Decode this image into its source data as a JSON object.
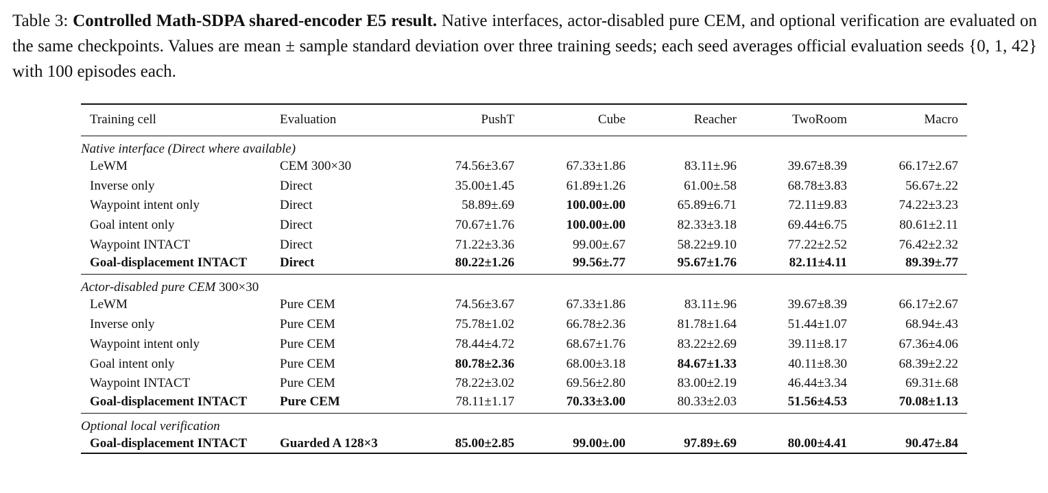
{
  "caption": {
    "label": "Table 3:",
    "title": "Controlled Math-SDPA shared-encoder E5 result.",
    "text": "Native interfaces, actor-disabled pure CEM, and optional verification are evaluated on the same checkpoints. Values are mean ± sample standard deviation over three training seeds; each seed averages official evaluation seeds {0, 1, 42} with 100 episodes each."
  },
  "table": {
    "headers": [
      "Training cell",
      "Evaluation",
      "PushT",
      "Cube",
      "Reacher",
      "TwoRoom",
      "Macro"
    ],
    "sections": [
      {
        "title": "Native interface (Direct where available)",
        "rows": [
          {
            "cells": [
              "LeWM",
              "CEM 300×30",
              "74.56±3.67",
              "67.33±1.86",
              "83.11±.96",
              "39.67±8.39",
              "66.17±2.67"
            ],
            "bold": [
              false,
              false,
              false,
              false,
              false,
              false,
              false
            ]
          },
          {
            "cells": [
              "Inverse only",
              "Direct",
              "35.00±1.45",
              "61.89±1.26",
              "61.00±.58",
              "68.78±3.83",
              "56.67±.22"
            ],
            "bold": [
              false,
              false,
              false,
              false,
              false,
              false,
              false
            ]
          },
          {
            "cells": [
              "Waypoint intent only",
              "Direct",
              "58.89±.69",
              "100.00±.00",
              "65.89±6.71",
              "72.11±9.83",
              "74.22±3.23"
            ],
            "bold": [
              false,
              false,
              false,
              true,
              false,
              false,
              false
            ]
          },
          {
            "cells": [
              "Goal intent only",
              "Direct",
              "70.67±1.76",
              "100.00±.00",
              "82.33±3.18",
              "69.44±6.75",
              "80.61±2.11"
            ],
            "bold": [
              false,
              false,
              false,
              true,
              false,
              false,
              false
            ]
          },
          {
            "cells": [
              "Waypoint INTACT",
              "Direct",
              "71.22±3.36",
              "99.00±.67",
              "58.22±9.10",
              "77.22±2.52",
              "76.42±2.32"
            ],
            "bold": [
              false,
              false,
              false,
              false,
              false,
              false,
              false
            ]
          },
          {
            "cells": [
              "Goal-displacement INTACT",
              "Direct",
              "80.22±1.26",
              "99.56±.77",
              "95.67±1.76",
              "82.11±4.11",
              "89.39±.77"
            ],
            "bold": [
              true,
              true,
              true,
              true,
              true,
              true,
              true
            ]
          }
        ]
      },
      {
        "title": "Actor-disabled pure CEM",
        "title_suffix": "300×30",
        "rows": [
          {
            "cells": [
              "LeWM",
              "Pure CEM",
              "74.56±3.67",
              "67.33±1.86",
              "83.11±.96",
              "39.67±8.39",
              "66.17±2.67"
            ],
            "bold": [
              false,
              false,
              false,
              false,
              false,
              false,
              false
            ]
          },
          {
            "cells": [
              "Inverse only",
              "Pure CEM",
              "75.78±1.02",
              "66.78±2.36",
              "81.78±1.64",
              "51.44±1.07",
              "68.94±.43"
            ],
            "bold": [
              false,
              false,
              false,
              false,
              false,
              false,
              false
            ]
          },
          {
            "cells": [
              "Waypoint intent only",
              "Pure CEM",
              "78.44±4.72",
              "68.67±1.76",
              "83.22±2.69",
              "39.11±8.17",
              "67.36±4.06"
            ],
            "bold": [
              false,
              false,
              false,
              false,
              false,
              false,
              false
            ]
          },
          {
            "cells": [
              "Goal intent only",
              "Pure CEM",
              "80.78±2.36",
              "68.00±3.18",
              "84.67±1.33",
              "40.11±8.30",
              "68.39±2.22"
            ],
            "bold": [
              false,
              false,
              true,
              false,
              true,
              false,
              false
            ]
          },
          {
            "cells": [
              "Waypoint INTACT",
              "Pure CEM",
              "78.22±3.02",
              "69.56±2.80",
              "83.00±2.19",
              "46.44±3.34",
              "69.31±.68"
            ],
            "bold": [
              false,
              false,
              false,
              false,
              false,
              false,
              false
            ]
          },
          {
            "cells": [
              "Goal-displacement INTACT",
              "Pure CEM",
              "78.11±1.17",
              "70.33±3.00",
              "80.33±2.03",
              "51.56±4.53",
              "70.08±1.13"
            ],
            "bold": [
              true,
              true,
              false,
              true,
              false,
              true,
              true
            ]
          }
        ]
      },
      {
        "title": "Optional local verification",
        "rows": [
          {
            "cells": [
              "Goal-displacement INTACT",
              "Guarded A 128×3",
              "85.00±2.85",
              "99.00±.00",
              "97.89±.69",
              "80.00±4.41",
              "90.47±.84"
            ],
            "bold": [
              true,
              true,
              true,
              true,
              true,
              true,
              true
            ]
          }
        ]
      }
    ]
  }
}
